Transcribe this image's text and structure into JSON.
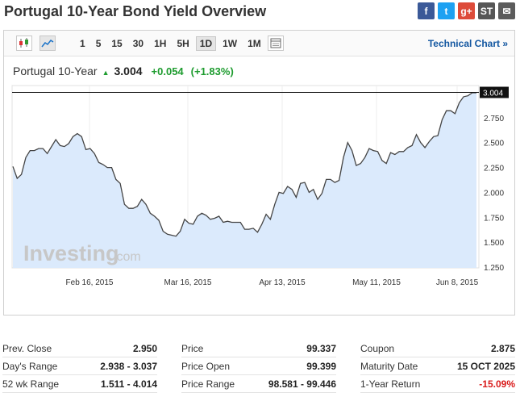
{
  "page": {
    "title": "Portugal 10-Year Bond Yield Overview"
  },
  "share": [
    {
      "label": "f",
      "color": "#3b5998",
      "icon": "facebook-icon"
    },
    {
      "label": "t",
      "color": "#1da1f2",
      "icon": "twitter-icon"
    },
    {
      "label": "g+",
      "color": "#dd4b39",
      "icon": "google-plus-icon"
    },
    {
      "label": "ST",
      "color": "#565656",
      "icon": "stocktwits-icon"
    },
    {
      "label": "✉",
      "color": "#5c5c5c",
      "icon": "email-icon"
    }
  ],
  "toolbar": {
    "ranges": [
      "1",
      "5",
      "15",
      "30",
      "1H",
      "5H",
      "1D",
      "1W",
      "1M"
    ],
    "active_range": "1D",
    "technical_chart": "Technical Chart »"
  },
  "quote": {
    "name": "Portugal 10-Year",
    "price": "3.004",
    "change": "+0.054",
    "change_pct": "(+1.83%)"
  },
  "watermark": {
    "brand": "Investing",
    "suffix": ".com"
  },
  "chart_data": {
    "type": "area",
    "y_ticks": [
      "3.004",
      "2.750",
      "2.500",
      "2.250",
      "2.000",
      "1.750",
      "1.500",
      "1.250"
    ],
    "x_ticks": [
      "Feb 16, 2015",
      "Mar 16, 2015",
      "Apr 13, 2015",
      "May 11, 2015",
      "Jun 8, 2015"
    ],
    "current_value": 3.004,
    "ylim": [
      1.25,
      3.04
    ],
    "line_color": "#444444",
    "fill_color": "#dbeafc",
    "values": [
      2.26,
      2.14,
      2.18,
      2.35,
      2.42,
      2.42,
      2.44,
      2.44,
      2.39,
      2.46,
      2.53,
      2.47,
      2.46,
      2.49,
      2.56,
      2.59,
      2.56,
      2.43,
      2.44,
      2.39,
      2.3,
      2.28,
      2.25,
      2.25,
      2.13,
      2.09,
      1.88,
      1.84,
      1.84,
      1.86,
      1.93,
      1.88,
      1.79,
      1.76,
      1.72,
      1.61,
      1.58,
      1.57,
      1.56,
      1.61,
      1.73,
      1.69,
      1.68,
      1.76,
      1.79,
      1.77,
      1.73,
      1.74,
      1.76,
      1.7,
      1.71,
      1.7,
      1.7,
      1.7,
      1.63,
      1.63,
      1.64,
      1.6,
      1.68,
      1.78,
      1.73,
      1.88,
      2.0,
      1.99,
      2.06,
      2.03,
      1.95,
      2.09,
      2.1,
      2.0,
      2.03,
      1.93,
      1.99,
      2.13,
      2.13,
      2.1,
      2.12,
      2.35,
      2.5,
      2.42,
      2.27,
      2.29,
      2.35,
      2.44,
      2.42,
      2.41,
      2.32,
      2.29,
      2.4,
      2.38,
      2.41,
      2.41,
      2.45,
      2.47,
      2.58,
      2.5,
      2.45,
      2.51,
      2.56,
      2.57,
      2.73,
      2.82,
      2.82,
      2.79,
      2.9,
      2.96,
      2.97,
      3.0,
      3.0
    ]
  },
  "stats": {
    "col1": [
      {
        "label": "Prev. Close",
        "value": "2.950"
      },
      {
        "label": "Day's Range",
        "value": "2.938 - 3.037"
      },
      {
        "label": "52 wk Range",
        "value": "1.511 - 4.014"
      }
    ],
    "col2": [
      {
        "label": "Price",
        "value": "99.337"
      },
      {
        "label": "Price Open",
        "value": "99.399"
      },
      {
        "label": "Price Range",
        "value": "98.581 - 99.446"
      }
    ],
    "col3": [
      {
        "label": "Coupon",
        "value": "2.875"
      },
      {
        "label": "Maturity Date",
        "value": "15 OCT 2025"
      },
      {
        "label": "1-Year Return",
        "value": "-15.09%",
        "negative": true
      }
    ]
  }
}
